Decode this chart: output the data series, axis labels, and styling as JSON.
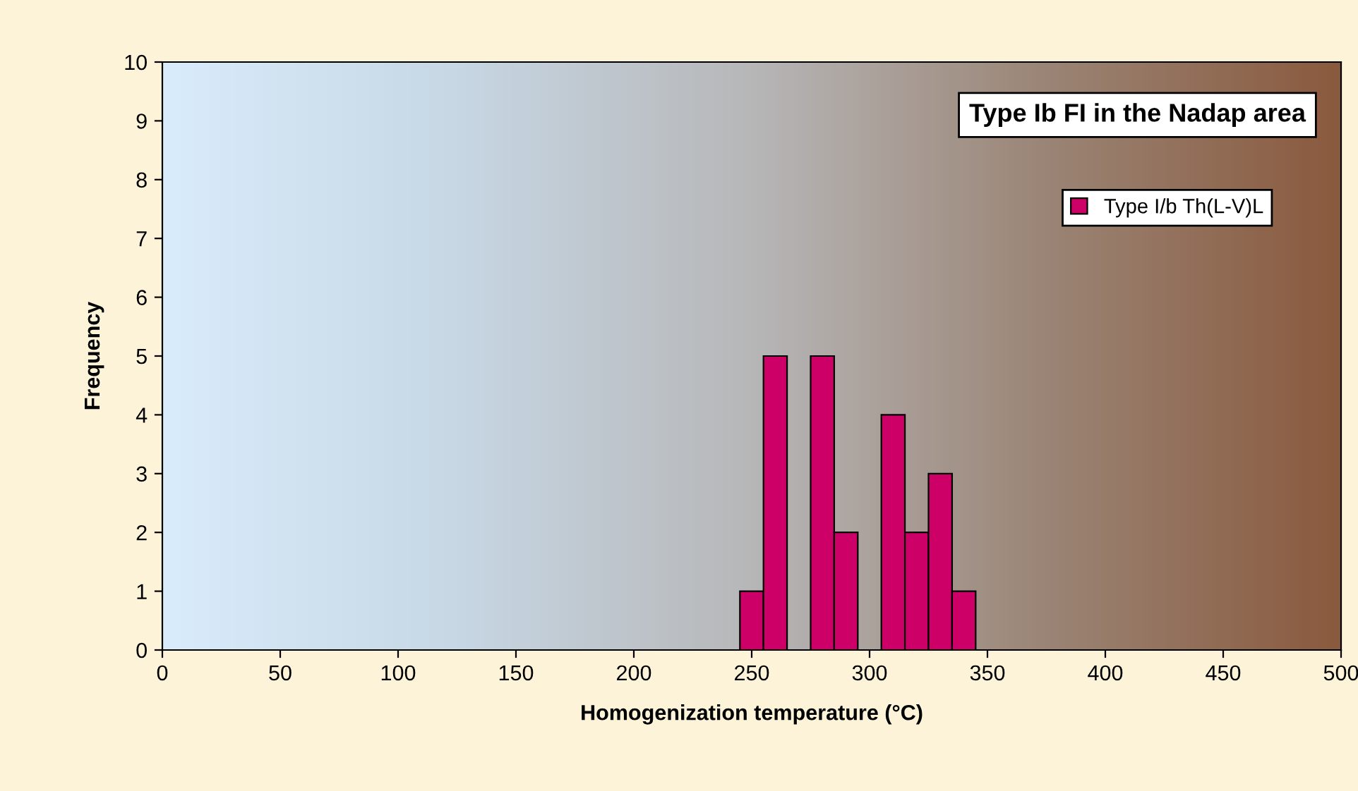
{
  "chart_data": {
    "type": "histogram",
    "title": "Type Ib FI in the Nadap area",
    "xlabel": "Homogenization temperature (°C)",
    "ylabel": "Frequency",
    "bins": [
      245,
      255,
      265,
      275,
      285,
      295,
      305,
      315,
      325,
      335,
      345
    ],
    "series": [
      {
        "name": "Type I/b Th(L-V)L",
        "color": "#cc0066",
        "values": [
          1,
          5,
          0,
          5,
          2,
          0,
          4,
          2,
          3,
          1
        ]
      }
    ],
    "xlim": [
      0,
      500
    ],
    "xticks": [
      0,
      50,
      100,
      150,
      200,
      250,
      300,
      350,
      400,
      450,
      500
    ],
    "ylim": [
      0,
      10
    ],
    "yticks": [
      0,
      1,
      2,
      3,
      4,
      5,
      6,
      7,
      8,
      9,
      10
    ],
    "grid": false,
    "legend": "top right"
  }
}
